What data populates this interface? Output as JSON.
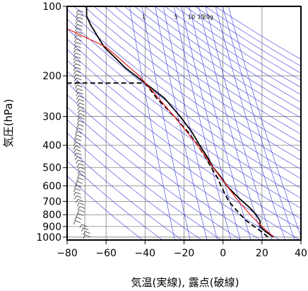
{
  "chart_data": {
    "type": "line",
    "title": "",
    "xlabel": "気温(実線), 露点(破線)",
    "ylabel": "気圧(hPa)",
    "xlim": [
      -80,
      40
    ],
    "ylim": [
      1030,
      100
    ],
    "yscale": "log",
    "grid": true,
    "x_ticks": [
      "−80",
      "−60",
      "−40",
      "−20",
      "0",
      "20",
      "40"
    ],
    "x_tick_values": [
      -80,
      -60,
      -40,
      -20,
      0,
      20,
      40
    ],
    "y_ticks": [
      "100",
      "200",
      "300",
      "400",
      "500",
      "600",
      "700",
      "800",
      "900",
      "1000"
    ],
    "y_tick_values": [
      100,
      200,
      300,
      400,
      500,
      600,
      700,
      800,
      900,
      1000
    ],
    "mixing_ratio_labels": [
      "1",
      "5",
      "10",
      "15",
      "20g"
    ],
    "mixing_ratio_values": [
      1,
      5,
      10,
      15,
      20
    ],
    "series": [
      {
        "name": "気温",
        "style": "solid",
        "color": "#000000",
        "points": [
          [
            26,
            1000
          ],
          [
            22,
            950
          ],
          [
            19,
            900
          ],
          [
            19,
            850
          ],
          [
            17,
            800
          ],
          [
            14,
            750
          ],
          [
            10,
            700
          ],
          [
            6,
            650
          ],
          [
            2,
            600
          ],
          [
            -1,
            550
          ],
          [
            -5,
            500
          ],
          [
            -8,
            450
          ],
          [
            -12,
            400
          ],
          [
            -16,
            350
          ],
          [
            -22,
            300
          ],
          [
            -30,
            250
          ],
          [
            -40,
            215
          ],
          [
            -50,
            185
          ],
          [
            -61,
            150
          ],
          [
            -68,
            120
          ],
          [
            -70,
            110
          ],
          [
            -70,
            100
          ]
        ]
      },
      {
        "name": "露点",
        "style": "dashed",
        "color": "#000000",
        "points": [
          [
            23,
            1000
          ],
          [
            20,
            950
          ],
          [
            16,
            900
          ],
          [
            12,
            850
          ],
          [
            9,
            800
          ],
          [
            6,
            750
          ],
          [
            3,
            700
          ],
          [
            1,
            650
          ],
          [
            -1,
            600
          ],
          [
            -3,
            550
          ],
          [
            -6,
            500
          ],
          [
            -9,
            450
          ],
          [
            -13,
            400
          ],
          [
            -18,
            350
          ],
          [
            -25,
            300
          ],
          [
            -34,
            250
          ],
          [
            -40,
            215
          ],
          [
            -80,
            215
          ]
        ]
      },
      {
        "name": "",
        "style": "solid",
        "color": "#e8201e",
        "points": [
          [
            26,
            1000
          ],
          [
            20,
            900
          ],
          [
            14,
            800
          ],
          [
            8,
            700
          ],
          [
            2,
            600
          ],
          [
            -5,
            500
          ],
          [
            -13,
            400
          ],
          [
            -25,
            300
          ],
          [
            -43,
            200
          ],
          [
            -60,
            150
          ],
          [
            -80,
            125
          ]
        ]
      }
    ]
  }
}
